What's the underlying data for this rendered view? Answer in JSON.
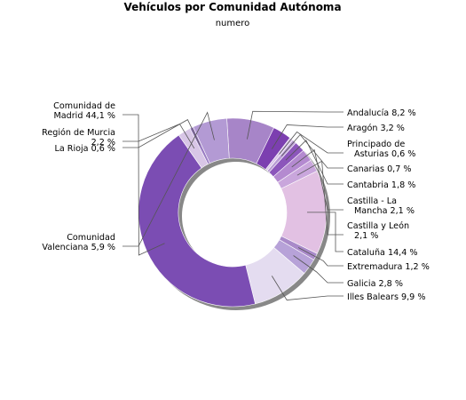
{
  "chart_data": {
    "type": "pie",
    "donut": true,
    "title": "Vehículos por Comunidad Autónoma",
    "subtitle": "numero",
    "slices": [
      {
        "name": "Andalucía",
        "label": [
          "Andalucía 8,2 %"
        ],
        "value": 8.2,
        "color": "#a785c8"
      },
      {
        "name": "Aragón",
        "label": [
          "Aragón 3,2 %"
        ],
        "value": 3.2,
        "color": "#7c3fb0"
      },
      {
        "name": "Principado de Asturias",
        "label": [
          "Principado de",
          "Asturias 0,6 %"
        ],
        "value": 0.6,
        "color": "#d9c4e8"
      },
      {
        "name": "Canarias",
        "label": [
          "Canarias 0,7 %"
        ],
        "value": 0.7,
        "color": "#b89bd4"
      },
      {
        "name": "Cantabria",
        "label": [
          "Cantabria 1,8 %"
        ],
        "value": 1.8,
        "color": "#8c56bb"
      },
      {
        "name": "Castilla - La Mancha",
        "label": [
          "Castilla - La",
          "Mancha 2,1 %"
        ],
        "value": 2.1,
        "color": "#b48ad0"
      },
      {
        "name": "Castilla y León",
        "label": [
          "Castilla y León",
          "2,1 %"
        ],
        "value": 2.1,
        "color": "#c9a6dc"
      },
      {
        "name": "Cataluña",
        "label": [
          "Cataluña 14,4 %"
        ],
        "value": 14.4,
        "color": "#e2c1e3"
      },
      {
        "name": "Extremadura",
        "label": [
          "Extremadura 1,2 %"
        ],
        "value": 1.2,
        "color": "#a98ac9"
      },
      {
        "name": "Galicia",
        "label": [
          "Galicia 2,8 %"
        ],
        "value": 2.8,
        "color": "#b7a2d8"
      },
      {
        "name": "Illes Balears",
        "label": [
          "Illes Balears 9,9 %"
        ],
        "value": 9.9,
        "color": "#e4dcf0"
      },
      {
        "name": "Comunidad de Madrid",
        "label": [
          "Comunidad de",
          "Madrid 44,1 %"
        ],
        "value": 44.1,
        "color": "#7b4db3"
      },
      {
        "name": "Región de Murcia",
        "label": [
          "Región de Murcia",
          "2,2 %"
        ],
        "value": 2.2,
        "color": "#d8c6e6"
      },
      {
        "name": "La Rioja",
        "label": [
          "La Rioja 0,6 %"
        ],
        "value": 0.6,
        "color": "#9a7cc3"
      },
      {
        "name": "Comunidad Valenciana",
        "label": [
          "Comunidad",
          "Valenciana 5,9 %"
        ],
        "value": 5.9,
        "color": "#b39ad4"
      }
    ],
    "legend": "none"
  }
}
